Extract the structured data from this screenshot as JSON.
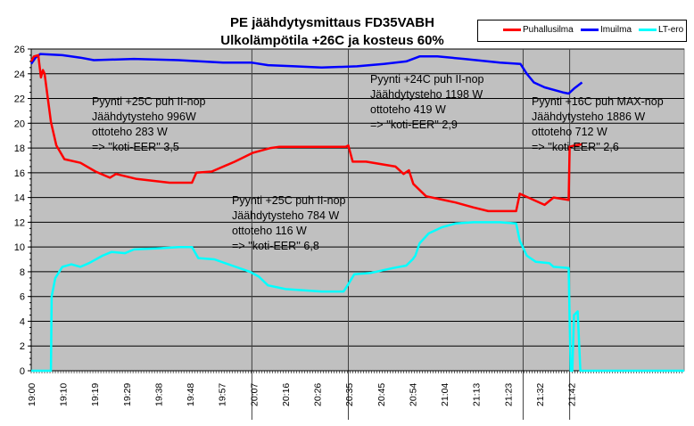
{
  "chart_data": {
    "type": "line",
    "title": "PE jäähdytysmittaus FD35VABH",
    "subtitle": "Ulkolämpötila +26C ja kosteus 60%",
    "xlabel": "",
    "ylabel": "",
    "x_units": "minutes from 19:00",
    "xlim": [
      0,
      195
    ],
    "ylim": [
      0,
      26
    ],
    "yticks": [
      0,
      2,
      4,
      6,
      8,
      10,
      12,
      14,
      16,
      18,
      20,
      22,
      24,
      26
    ],
    "xtick_labels": [
      "19:00",
      "19:10",
      "19:19",
      "19:29",
      "19:38",
      "19:48",
      "19:57",
      "20:07",
      "20:16",
      "20:26",
      "20:35",
      "20:45",
      "20:54",
      "21:04",
      "21:13",
      "21:23",
      "21:32",
      "21:42"
    ],
    "xtick_step_minutes": 9.49,
    "grid": "horizontal",
    "legend_position": "top-right",
    "vertical_markers": [
      65.9,
      94.7,
      146.9,
      160.8
    ],
    "series": [
      {
        "name": "Puhallusilma",
        "color": "#ff0000",
        "points": [
          [
            0,
            25.0
          ],
          [
            0.8,
            25.4
          ],
          [
            2.1,
            25.5
          ],
          [
            2.9,
            23.7
          ],
          [
            3.5,
            24.3
          ],
          [
            4.0,
            24.0
          ],
          [
            5.9,
            20.1
          ],
          [
            7.5,
            18.2
          ],
          [
            9.9,
            17.1
          ],
          [
            14.7,
            16.8
          ],
          [
            19.2,
            16.1
          ],
          [
            23.5,
            15.6
          ],
          [
            25.3,
            15.9
          ],
          [
            31.5,
            15.5
          ],
          [
            41.3,
            15.2
          ],
          [
            48,
            15.2
          ],
          [
            49.3,
            16.0
          ],
          [
            53.9,
            16.1
          ],
          [
            60.8,
            16.9
          ],
          [
            66.1,
            17.6
          ],
          [
            71.5,
            18.0
          ],
          [
            74.1,
            18.1
          ],
          [
            93.9,
            18.1
          ],
          [
            94.7,
            18.2
          ],
          [
            96,
            16.9
          ],
          [
            100,
            16.9
          ],
          [
            108.8,
            16.5
          ],
          [
            111.2,
            15.9
          ],
          [
            112.8,
            16.2
          ],
          [
            114.1,
            15.1
          ],
          [
            117.9,
            14.1
          ],
          [
            123.2,
            13.8
          ],
          [
            126.7,
            13.6
          ],
          [
            132,
            13.2
          ],
          [
            136.5,
            12.9
          ],
          [
            144.8,
            12.9
          ],
          [
            145.9,
            14.3
          ],
          [
            153.3,
            13.4
          ],
          [
            156,
            14.0
          ],
          [
            160.5,
            13.8
          ],
          [
            160.8,
            18.1
          ],
          [
            162.1,
            18.2
          ],
          [
            164.5,
            18.3
          ]
        ]
      },
      {
        "name": "Imuilma",
        "color": "#0000ff",
        "points": [
          [
            0,
            24.8
          ],
          [
            1.3,
            25.3
          ],
          [
            2.7,
            25.6
          ],
          [
            9.3,
            25.5
          ],
          [
            14.7,
            25.3
          ],
          [
            18.7,
            25.1
          ],
          [
            30.7,
            25.2
          ],
          [
            44,
            25.1
          ],
          [
            57.3,
            24.9
          ],
          [
            65.9,
            24.9
          ],
          [
            70.7,
            24.7
          ],
          [
            78.7,
            24.6
          ],
          [
            86.7,
            24.5
          ],
          [
            97.3,
            24.6
          ],
          [
            105.3,
            24.8
          ],
          [
            112,
            25.0
          ],
          [
            116,
            25.4
          ],
          [
            121.3,
            25.4
          ],
          [
            129.3,
            25.2
          ],
          [
            140,
            24.9
          ],
          [
            146.1,
            24.8
          ],
          [
            148,
            24.0
          ],
          [
            150.1,
            23.3
          ],
          [
            153.3,
            22.9
          ],
          [
            158.7,
            22.5
          ],
          [
            160.5,
            22.4
          ],
          [
            162.1,
            22.8
          ],
          [
            164.5,
            23.3
          ]
        ]
      },
      {
        "name": "LT-ero",
        "color": "#00ffff",
        "points": [
          [
            0,
            0
          ],
          [
            5.9,
            0
          ],
          [
            6.1,
            6.0
          ],
          [
            7.2,
            7.5
          ],
          [
            9.3,
            8.4
          ],
          [
            12,
            8.6
          ],
          [
            14.7,
            8.4
          ],
          [
            17.3,
            8.7
          ],
          [
            21.3,
            9.3
          ],
          [
            24,
            9.6
          ],
          [
            28,
            9.5
          ],
          [
            30.7,
            9.8
          ],
          [
            38.7,
            9.9
          ],
          [
            44,
            10.0
          ],
          [
            48,
            10.0
          ],
          [
            49.9,
            9.1
          ],
          [
            54.7,
            9.0
          ],
          [
            60,
            8.5
          ],
          [
            65.3,
            8.0
          ],
          [
            68,
            7.6
          ],
          [
            70.7,
            6.9
          ],
          [
            76,
            6.6
          ],
          [
            86.7,
            6.4
          ],
          [
            93.3,
            6.4
          ],
          [
            94.7,
            7.0
          ],
          [
            96.5,
            7.8
          ],
          [
            101.3,
            7.9
          ],
          [
            108,
            8.3
          ],
          [
            112,
            8.5
          ],
          [
            113.9,
            9.0
          ],
          [
            114.7,
            9.3
          ],
          [
            116,
            10.3
          ],
          [
            118.7,
            11.1
          ],
          [
            122.7,
            11.6
          ],
          [
            126.7,
            11.9
          ],
          [
            132,
            12.0
          ],
          [
            140,
            12.0
          ],
          [
            144.8,
            11.9
          ],
          [
            145.9,
            10.5
          ],
          [
            148,
            9.3
          ],
          [
            150.7,
            8.8
          ],
          [
            154.7,
            8.7
          ],
          [
            156,
            8.4
          ],
          [
            160.5,
            8.3
          ],
          [
            161.1,
            0
          ],
          [
            161.6,
            0
          ],
          [
            162.1,
            4.5
          ],
          [
            163.2,
            4.8
          ],
          [
            164,
            0
          ],
          [
            164.8,
            0
          ],
          [
            195,
            0
          ]
        ]
      }
    ],
    "annotations": [
      {
        "lines": [
          "Pyynti +25C puh II-nop",
          "Jäähdytysteho 996W",
          "ottoteho 283 W",
          "=> ''koti-EER'' 3,5"
        ]
      },
      {
        "lines": [
          "Pyynti +25C puh II-nop",
          "Jäähdytysteho 784 W",
          "ottoteho 116 W",
          "=> ''koti-EER'' 6,8"
        ]
      },
      {
        "lines": [
          "Pyynti +24C puh II-nop",
          "Jäähdytysteho 1198 W",
          "ottoteho 419 W",
          "=> ''koti-EER'' 2,9"
        ]
      },
      {
        "lines": [
          "Pyynti +16C puh MAX-nop",
          "Jäähdytysteho 1886 W",
          "ottoteho 712 W",
          "=> ''koti-EER'' 2,6"
        ]
      }
    ]
  }
}
